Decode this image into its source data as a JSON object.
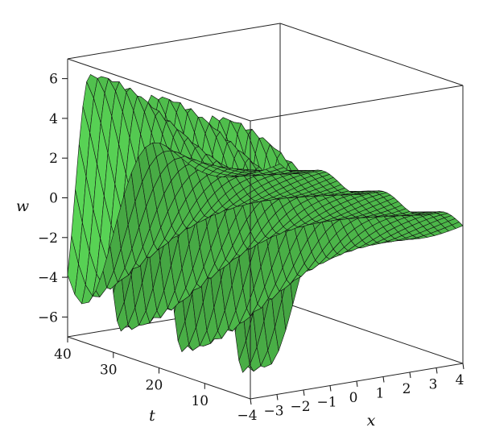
{
  "chart_data": {
    "type": "surface3d",
    "title": "",
    "xlabel": "x",
    "tlabel": "t",
    "zlabel": "w",
    "x_range": [
      -4,
      4
    ],
    "t_range": [
      0,
      40
    ],
    "w_range": [
      -7,
      7
    ],
    "x_ticks": [
      -4,
      -3,
      -2,
      -1,
      0,
      1,
      2,
      3,
      4
    ],
    "x_tick_labels": [
      "−4",
      "−3",
      "−2",
      "−1",
      "0",
      "1",
      "2",
      "3",
      "4"
    ],
    "t_ticks": [
      10,
      20,
      30,
      40
    ],
    "t_tick_labels": [
      "10",
      "20",
      "30",
      "40"
    ],
    "w_ticks": [
      -6,
      -4,
      -2,
      0,
      2,
      4,
      6
    ],
    "w_tick_labels": [
      "−6",
      "−4",
      "−2",
      "0",
      "2",
      "4",
      "6"
    ],
    "surface_color": "#4db84a",
    "grid_line_color": "#111111",
    "box": true
  }
}
